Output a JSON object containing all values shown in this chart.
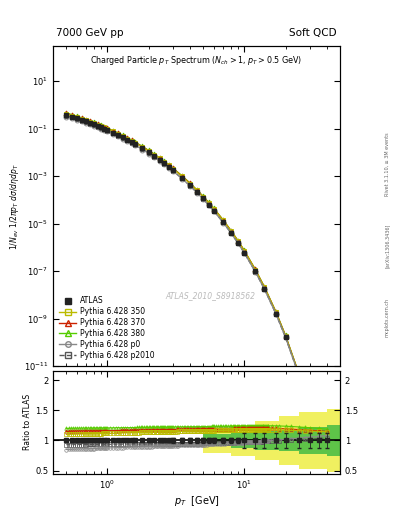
{
  "title_left": "7000 GeV pp",
  "title_right": "Soft QCD",
  "ylabel_main": "1/N_{ev} 1/2πp_T dσ/dηdp_T",
  "ylabel_ratio": "Ratio to ATLAS",
  "xlabel": "p_T  [GeV]",
  "watermark": "ATLAS_2010_S8918562",
  "right_label": "Rivet 3.1.10, ≥ 3M events",
  "right_label2": "[arXiv:1306.3436]",
  "right_label3": "mcplots.cern.ch",
  "ylim_main": [
    1e-11,
    300.0
  ],
  "ylim_ratio": [
    0.45,
    2.15
  ],
  "xlim": [
    0.4,
    50
  ],
  "atlas_color": "#222222",
  "p350_color": "#bbbb00",
  "p370_color": "#cc2200",
  "p380_color": "#55cc00",
  "p0_color": "#888888",
  "p2010_color": "#555555",
  "band_yellow": "#eeee44",
  "band_green": "#44bb44"
}
